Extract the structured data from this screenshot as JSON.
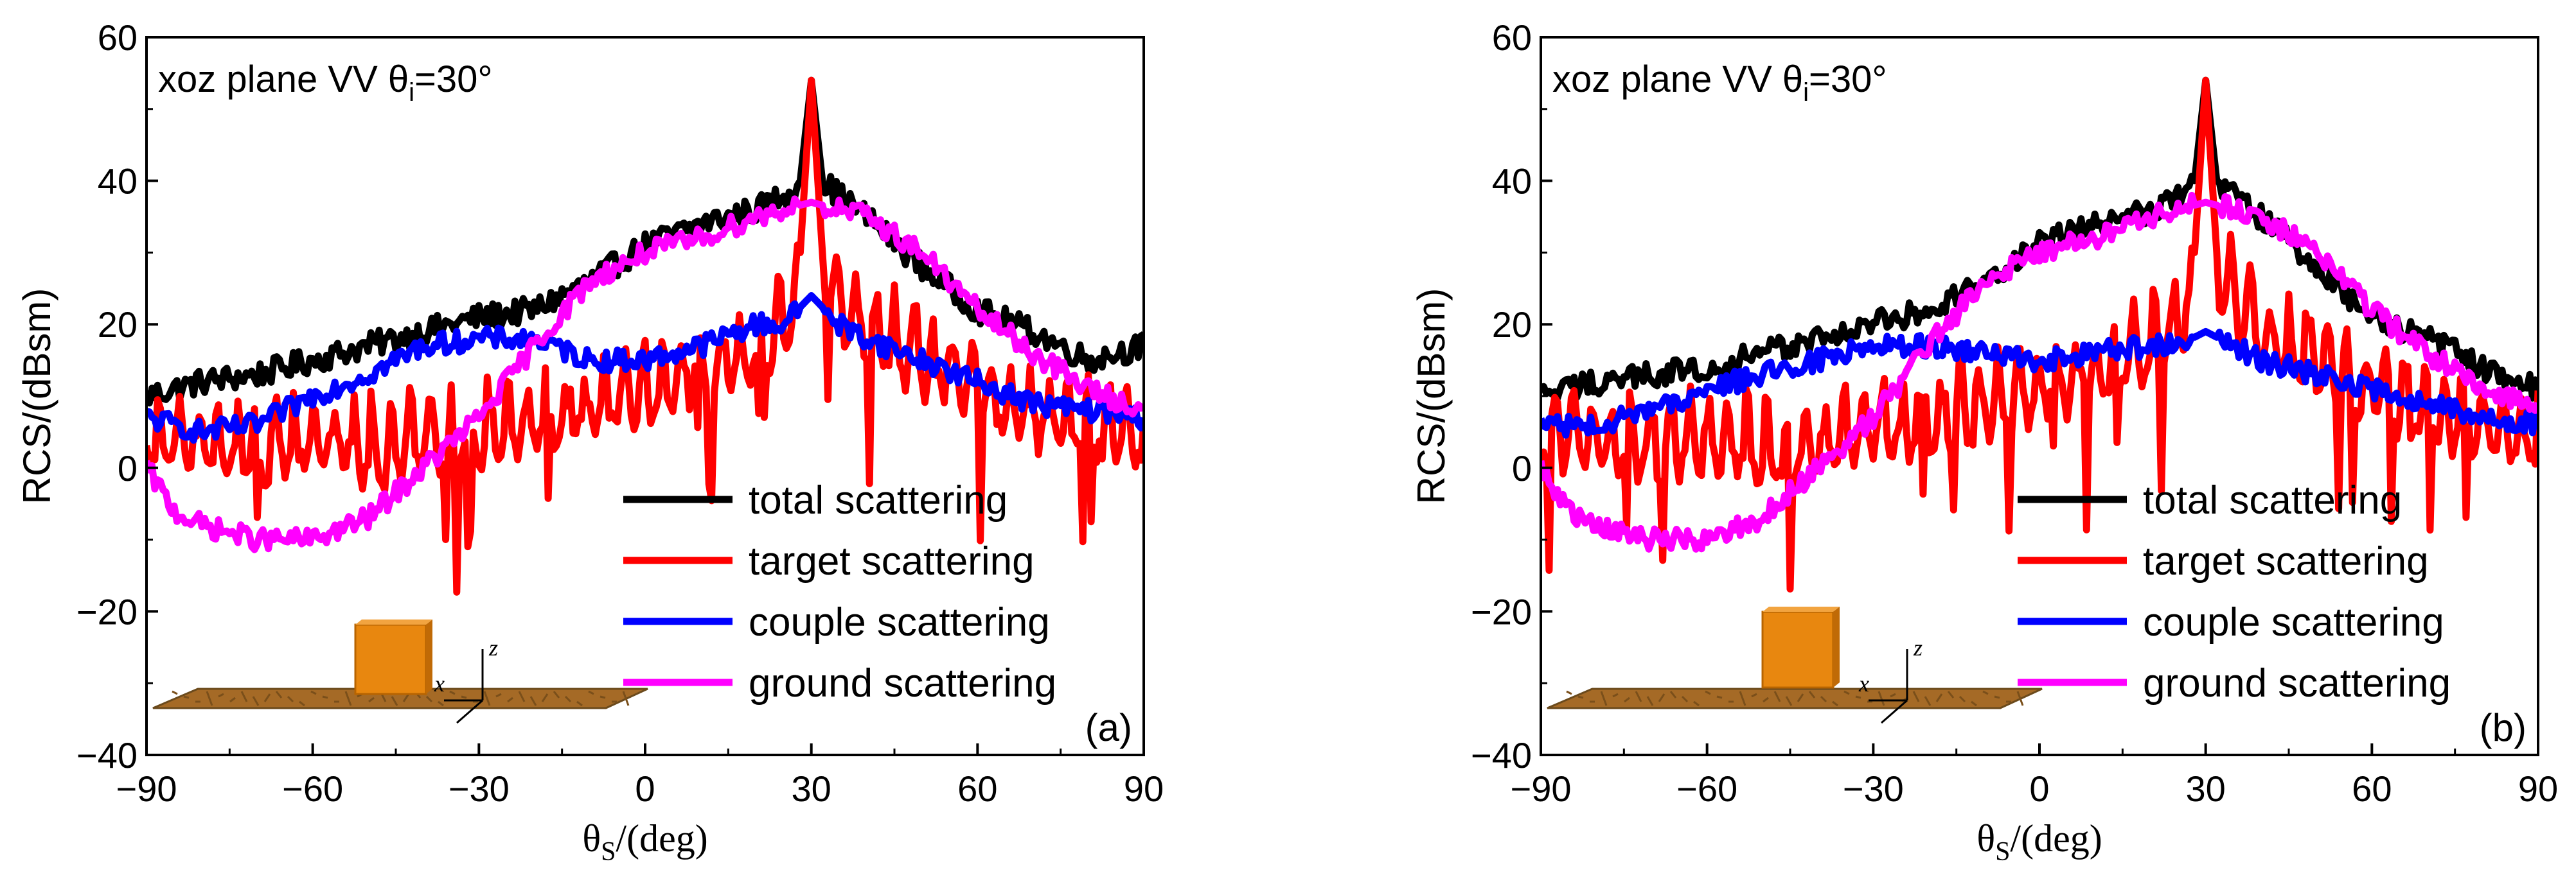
{
  "chart_data": [
    {
      "type": "line",
      "panel_label": "(a)",
      "annotation": {
        "prefix": "xoz plane  VV  ",
        "theta": "θ",
        "sub": "i",
        "suffix": "=30°"
      },
      "xlabel": {
        "theta": "θ",
        "sub": "S",
        "suffix": "/(deg)"
      },
      "ylabel": "RCS/(dBsm)",
      "xlim": [
        -90,
        90
      ],
      "ylim": [
        -40,
        60
      ],
      "xticks": [
        -90,
        -60,
        -30,
        0,
        30,
        60,
        90
      ],
      "yticks": [
        -40,
        -20,
        0,
        20,
        40,
        60
      ],
      "xtick_labels": [
        "−90",
        "−60",
        "−30",
        "0",
        "30",
        "60",
        "90"
      ],
      "ytick_labels": [
        "−40",
        "−20",
        "0",
        "20",
        "40",
        "60"
      ],
      "legend": [
        "total scattering",
        "target scattering",
        "couple scattering",
        "ground scattering"
      ],
      "inset": {
        "axis_x": "x",
        "axis_z": "z"
      },
      "series": [
        {
          "name": "total scattering",
          "color": "#000000",
          "x": [
            -90,
            -80,
            -70,
            -60,
            -50,
            -40,
            -30,
            -20,
            -10,
            0,
            10,
            20,
            25,
            28,
            30,
            32,
            35,
            40,
            50,
            60,
            70,
            80,
            90
          ],
          "values": [
            10,
            12,
            13,
            15,
            17,
            19,
            21,
            22,
            26,
            31,
            34,
            36,
            38,
            40,
            54,
            40,
            38,
            35,
            28,
            22,
            19,
            15,
            17
          ]
        },
        {
          "name": "target scattering",
          "color": "#ff0000",
          "x": [
            -90,
            -80,
            -70,
            -60,
            -50,
            -40,
            -30,
            -20,
            -10,
            0,
            10,
            20,
            25,
            28,
            30,
            32,
            35,
            40,
            50,
            60,
            70,
            80,
            90
          ],
          "values": [
            8,
            7,
            6,
            7,
            5,
            6,
            8,
            10,
            12,
            14,
            17,
            20,
            22,
            30,
            54,
            30,
            26,
            22,
            18,
            14,
            11,
            9,
            8
          ]
        },
        {
          "name": "couple scattering",
          "color": "#0000ff",
          "x": [
            -90,
            -80,
            -70,
            -60,
            -50,
            -40,
            -30,
            -20,
            -10,
            0,
            10,
            20,
            25,
            30,
            35,
            40,
            50,
            60,
            70,
            80,
            90
          ],
          "values": [
            7,
            5,
            6,
            10,
            13,
            17,
            18,
            18,
            15,
            15,
            17,
            20,
            20,
            24,
            20,
            18,
            15,
            12,
            9,
            8,
            7
          ]
        },
        {
          "name": "ground scattering",
          "color": "#ff00ff",
          "x": [
            -90,
            -85,
            -80,
            -70,
            -60,
            -50,
            -40,
            -30,
            -20,
            -10,
            0,
            10,
            20,
            25,
            30,
            35,
            40,
            50,
            60,
            70,
            80,
            90
          ],
          "values": [
            0,
            -6,
            -8,
            -10,
            -10,
            -7,
            0,
            7,
            17,
            26,
            30,
            32,
            35,
            36,
            37,
            36,
            35,
            30,
            22,
            16,
            11,
            8
          ]
        }
      ]
    },
    {
      "type": "line",
      "panel_label": "(b)",
      "annotation": {
        "prefix": "xoz plane  VV  ",
        "theta": "θ",
        "sub": "i",
        "suffix": "=30°"
      },
      "xlabel": {
        "theta": "θ",
        "sub": "S",
        "suffix": "/(deg)"
      },
      "ylabel": "RCS/(dBsm)",
      "xlim": [
        -90,
        90
      ],
      "ylim": [
        -40,
        60
      ],
      "xticks": [
        -90,
        -60,
        -30,
        0,
        30,
        60,
        90
      ],
      "yticks": [
        -40,
        -20,
        0,
        20,
        40,
        60
      ],
      "xtick_labels": [
        "−90",
        "−60",
        "−30",
        "0",
        "30",
        "60",
        "90"
      ],
      "ytick_labels": [
        "−40",
        "−20",
        "0",
        "20",
        "40",
        "60"
      ],
      "legend": [
        "total scattering",
        "target scattering",
        "couple scattering",
        "ground scattering"
      ],
      "inset": {
        "axis_x": "x",
        "axis_z": "z"
      },
      "series": [
        {
          "name": "total scattering",
          "color": "#000000",
          "x": [
            -90,
            -80,
            -70,
            -60,
            -50,
            -40,
            -30,
            -20,
            -10,
            0,
            10,
            20,
            25,
            28,
            30,
            32,
            35,
            40,
            50,
            60,
            70,
            80,
            90
          ],
          "values": [
            10,
            12,
            13,
            14,
            16,
            18,
            20,
            22,
            26,
            31,
            34,
            36,
            38,
            40,
            54,
            40,
            38,
            35,
            28,
            21,
            18,
            14,
            11
          ]
        },
        {
          "name": "target scattering",
          "color": "#ff0000",
          "x": [
            -90,
            -80,
            -70,
            -60,
            -50,
            -40,
            -30,
            -20,
            -10,
            0,
            10,
            20,
            25,
            28,
            30,
            32,
            35,
            40,
            50,
            60,
            70,
            80,
            90
          ],
          "values": [
            8,
            7,
            6,
            7,
            5,
            6,
            8,
            10,
            12,
            14,
            17,
            20,
            22,
            30,
            54,
            30,
            26,
            22,
            18,
            14,
            11,
            9,
            8
          ]
        },
        {
          "name": "couple scattering",
          "color": "#0000ff",
          "x": [
            -90,
            -80,
            -70,
            -60,
            -50,
            -40,
            -30,
            -20,
            -10,
            0,
            10,
            20,
            25,
            30,
            35,
            40,
            50,
            60,
            70,
            80,
            90
          ],
          "values": [
            6,
            6,
            8,
            11,
            13,
            15,
            17,
            17,
            16,
            15,
            16,
            17,
            17,
            19,
            17,
            15,
            13,
            11,
            9,
            7,
            6
          ]
        },
        {
          "name": "ground scattering",
          "color": "#ff00ff",
          "x": [
            -90,
            -85,
            -80,
            -70,
            -60,
            -50,
            -40,
            -30,
            -20,
            -10,
            0,
            10,
            20,
            25,
            30,
            35,
            40,
            50,
            60,
            70,
            80,
            90
          ],
          "values": [
            0,
            -6,
            -8,
            -10,
            -10,
            -7,
            0,
            7,
            17,
            26,
            30,
            32,
            35,
            36,
            37,
            36,
            35,
            30,
            22,
            16,
            11,
            8
          ]
        }
      ]
    }
  ]
}
